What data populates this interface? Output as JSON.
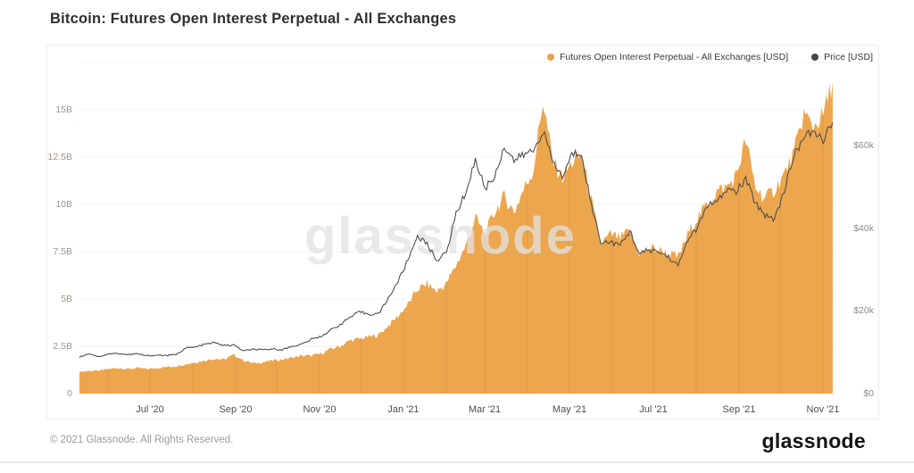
{
  "page": {
    "title": "Bitcoin: Futures Open Interest Perpetual - All Exchanges",
    "watermark": "glassnode",
    "footer_copyright": "© 2021 Glassnode. All Rights Reserved.",
    "footer_logo": "glassnode"
  },
  "legend": {
    "items": [
      {
        "label": "Futures Open Interest Perpetual - All Exchanges [USD]",
        "color": "#e5a44f"
      },
      {
        "label": "Price [USD]",
        "color": "#474747"
      }
    ]
  },
  "colors": {
    "open_interest_fill": "#eca64e",
    "price_line": "#4f4f4f",
    "gridline": "#f3f3f3",
    "month_seam": "rgba(150,95,25,0.10)",
    "watermark": "#e2e2e2"
  },
  "chart_data": {
    "type": "area",
    "title": "Bitcoin: Futures Open Interest Perpetual - All Exchanges",
    "x_unit": "date",
    "x": [
      "2020-05-11",
      "2020-05-18",
      "2020-05-25",
      "2020-06-01",
      "2020-06-08",
      "2020-06-15",
      "2020-06-22",
      "2020-06-29",
      "2020-07-06",
      "2020-07-13",
      "2020-07-20",
      "2020-07-27",
      "2020-08-03",
      "2020-08-10",
      "2020-08-17",
      "2020-08-24",
      "2020-08-31",
      "2020-09-07",
      "2020-09-14",
      "2020-09-21",
      "2020-09-28",
      "2020-10-05",
      "2020-10-12",
      "2020-10-19",
      "2020-10-26",
      "2020-11-02",
      "2020-11-09",
      "2020-11-16",
      "2020-11-23",
      "2020-11-30",
      "2020-12-07",
      "2020-12-14",
      "2020-12-21",
      "2020-12-28",
      "2021-01-04",
      "2021-01-11",
      "2021-01-18",
      "2021-01-25",
      "2021-02-01",
      "2021-02-08",
      "2021-02-15",
      "2021-02-22",
      "2021-03-01",
      "2021-03-08",
      "2021-03-15",
      "2021-03-22",
      "2021-03-29",
      "2021-04-05",
      "2021-04-12",
      "2021-04-19",
      "2021-04-26",
      "2021-05-03",
      "2021-05-10",
      "2021-05-17",
      "2021-05-24",
      "2021-05-31",
      "2021-06-07",
      "2021-06-14",
      "2021-06-21",
      "2021-06-28",
      "2021-07-05",
      "2021-07-12",
      "2021-07-19",
      "2021-07-26",
      "2021-08-02",
      "2021-08-09",
      "2021-08-16",
      "2021-08-23",
      "2021-08-30",
      "2021-09-06",
      "2021-09-13",
      "2021-09-20",
      "2021-09-27",
      "2021-10-04",
      "2021-10-11",
      "2021-10-18",
      "2021-10-25",
      "2021-11-01",
      "2021-11-08"
    ],
    "series": [
      {
        "name": "Futures Open Interest Perpetual - All Exchanges [USD]",
        "type": "area",
        "axis": "left",
        "unit": "billions USD",
        "color": "#eca64e",
        "values": [
          1.15,
          1.2,
          1.2,
          1.3,
          1.35,
          1.3,
          1.35,
          1.3,
          1.35,
          1.4,
          1.45,
          1.55,
          1.65,
          1.75,
          1.85,
          1.8,
          2.05,
          1.75,
          1.6,
          1.65,
          1.75,
          1.8,
          1.9,
          2.0,
          2.0,
          2.1,
          2.35,
          2.5,
          2.8,
          2.9,
          3.0,
          3.1,
          3.6,
          4.1,
          4.7,
          5.5,
          5.8,
          5.4,
          5.8,
          6.8,
          7.8,
          9.3,
          8.4,
          9.6,
          10.4,
          9.6,
          10.8,
          11.8,
          15.5,
          12.3,
          11.4,
          12.2,
          12.6,
          10.2,
          7.9,
          8.4,
          8.2,
          8.6,
          7.4,
          7.7,
          7.6,
          7.4,
          7.2,
          8.4,
          9.3,
          10.0,
          10.7,
          10.9,
          11.5,
          13.4,
          10.9,
          10.3,
          10.8,
          11.6,
          12.7,
          14.8,
          14.1,
          14.7,
          16.5
        ]
      },
      {
        "name": "Price [USD]",
        "type": "line",
        "axis": "right",
        "unit": "thousands USD",
        "color": "#4f4f4f",
        "values": [
          8.8,
          9.7,
          8.9,
          9.6,
          9.7,
          9.4,
          9.6,
          9.1,
          9.3,
          9.2,
          9.4,
          11.0,
          11.2,
          11.9,
          12.3,
          11.6,
          11.7,
          10.3,
          10.7,
          10.5,
          10.8,
          10.6,
          11.4,
          11.9,
          13.1,
          13.8,
          15.3,
          16.7,
          18.4,
          19.7,
          19.2,
          19.3,
          23.1,
          27.1,
          32.2,
          38.2,
          36.0,
          32.3,
          33.9,
          43.5,
          48.6,
          56.5,
          49.6,
          52.4,
          59.8,
          56.3,
          57.7,
          58.7,
          63.5,
          56.2,
          52.2,
          57.8,
          58.2,
          45.6,
          36.7,
          36.6,
          35.8,
          39.3,
          33.6,
          34.7,
          34.2,
          33.0,
          30.8,
          37.3,
          39.9,
          45.6,
          46.0,
          49.3,
          48.8,
          51.8,
          46.0,
          43.2,
          42.2,
          49.2,
          57.5,
          62.0,
          63.1,
          61.4,
          65.5
        ]
      }
    ],
    "y_left": {
      "ticks": [
        {
          "label": "0",
          "value": 0
        },
        {
          "label": "2.5B",
          "value": 2.5
        },
        {
          "label": "5B",
          "value": 5
        },
        {
          "label": "7.5B",
          "value": 7.5
        },
        {
          "label": "10B",
          "value": 10
        },
        {
          "label": "12.5B",
          "value": 12.5
        },
        {
          "label": "15B",
          "value": 15
        }
      ],
      "range": [
        0,
        17.5
      ]
    },
    "y_right": {
      "ticks": [
        {
          "label": "$0",
          "value": 0
        },
        {
          "label": "$20k",
          "value": 20
        },
        {
          "label": "$40k",
          "value": 40
        },
        {
          "label": "$60k",
          "value": 60
        }
      ],
      "range": [
        0,
        80
      ]
    },
    "x_ticks": [
      {
        "label": "Jul '20",
        "date": "2020-07-01"
      },
      {
        "label": "Sep '20",
        "date": "2020-09-01"
      },
      {
        "label": "Nov '20",
        "date": "2020-11-01"
      },
      {
        "label": "Jan '21",
        "date": "2021-01-01"
      },
      {
        "label": "Mar '21",
        "date": "2021-03-01"
      },
      {
        "label": "May '21",
        "date": "2021-05-01"
      },
      {
        "label": "Jul '21",
        "date": "2021-07-01"
      },
      {
        "label": "Sep '21",
        "date": "2021-09-01"
      },
      {
        "label": "Nov '21",
        "date": "2021-11-01"
      }
    ],
    "grid": "horizontal-faint",
    "legend_position": "top-right-inside"
  }
}
